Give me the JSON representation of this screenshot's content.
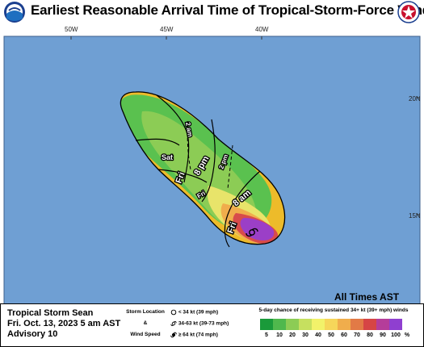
{
  "header": {
    "title": "Earliest Reasonable Arrival Time of Tropical-Storm-Force Winds",
    "logo_left": "noaa-logo",
    "logo_right": "nws-logo"
  },
  "map": {
    "longitude_labels": [
      "50W",
      "45W",
      "40W"
    ],
    "latitude_labels": [
      "20N",
      "15N"
    ],
    "ocean_color": "#6f9fd3",
    "swath_colors": {
      "outer": "#edbb2a",
      "low": "#5ac14f",
      "mid": "#b9d55a",
      "high": "#d84b4b",
      "core": "#9b3fc7"
    },
    "time_labels": [
      "Sat",
      "2 am",
      "Fri",
      "8 pm",
      "2 pm",
      "Fri",
      "8 am",
      "Fri"
    ],
    "storm_symbol": "tropical-storm-icon",
    "all_times_note": "All Times AST"
  },
  "legend": {
    "storm_name": "Tropical Storm Sean",
    "date": "Fri. Oct. 13, 2023  5 am AST",
    "advisory": "Advisory 10",
    "symbol_labels": {
      "location": "Storm Location",
      "amp": "&",
      "wind_speed": "Wind Speed",
      "low": "< 34 kt (39 mph)",
      "mid": "34-63 kt (39-73 mph)",
      "high": "≥ 64 kt (74 mph)"
    },
    "probability_title": "5-day chance of receiving sustained 34+ kt (39+ mph) winds",
    "scale": [
      {
        "label": "5",
        "color": "#1a9a3a"
      },
      {
        "label": "10",
        "color": "#4fb84d"
      },
      {
        "label": "20",
        "color": "#8ccc55"
      },
      {
        "label": "30",
        "color": "#c6e05f"
      },
      {
        "label": "40",
        "color": "#f2f26a"
      },
      {
        "label": "50",
        "color": "#f6d65a"
      },
      {
        "label": "60",
        "color": "#f0ad4c"
      },
      {
        "label": "70",
        "color": "#e27a46"
      },
      {
        "label": "80",
        "color": "#d64545"
      },
      {
        "label": "90",
        "color": "#b53d9a"
      },
      {
        "label": "100",
        "color": "#8f3fd0"
      }
    ],
    "scale_unit": "%"
  }
}
